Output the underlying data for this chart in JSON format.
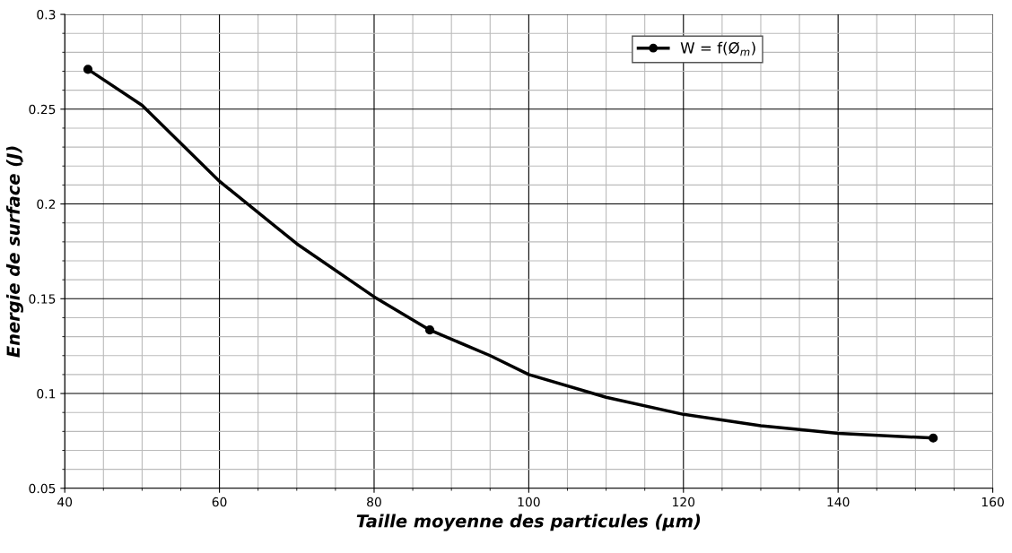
{
  "chart_data": {
    "type": "line",
    "xlabel": "Taille moyenne des particules (µm)",
    "ylabel": "Energie de surface (J)",
    "series": [
      {
        "name": "W = f(Ø$_{m}$)",
        "color": "#000000",
        "marker": "none",
        "x": [
          43,
          50,
          60,
          70,
          80,
          87.2,
          95,
          100,
          110,
          120,
          130,
          140,
          152.3
        ],
        "values": [
          0.271,
          0.252,
          0.212,
          0.179,
          0.151,
          0.1335,
          0.12,
          0.11,
          0.098,
          0.089,
          0.083,
          0.079,
          0.0765
        ]
      },
      {
        "type": "scatter",
        "color": "#000000",
        "x": [
          43,
          87.2,
          152.3
        ],
        "values": [
          0.271,
          0.1335,
          0.0765
        ]
      }
    ],
    "xlim": [
      40,
      160
    ],
    "xticks": [
      40,
      60,
      80,
      100,
      120,
      140,
      160
    ],
    "ylim": [
      0.05,
      0.3
    ],
    "yticks": [
      0.05,
      0.1,
      0.15,
      0.2,
      0.25,
      0.3
    ],
    "grid": true,
    "legend": "top right",
    "marker": "circle",
    "line_style": "solid"
  }
}
